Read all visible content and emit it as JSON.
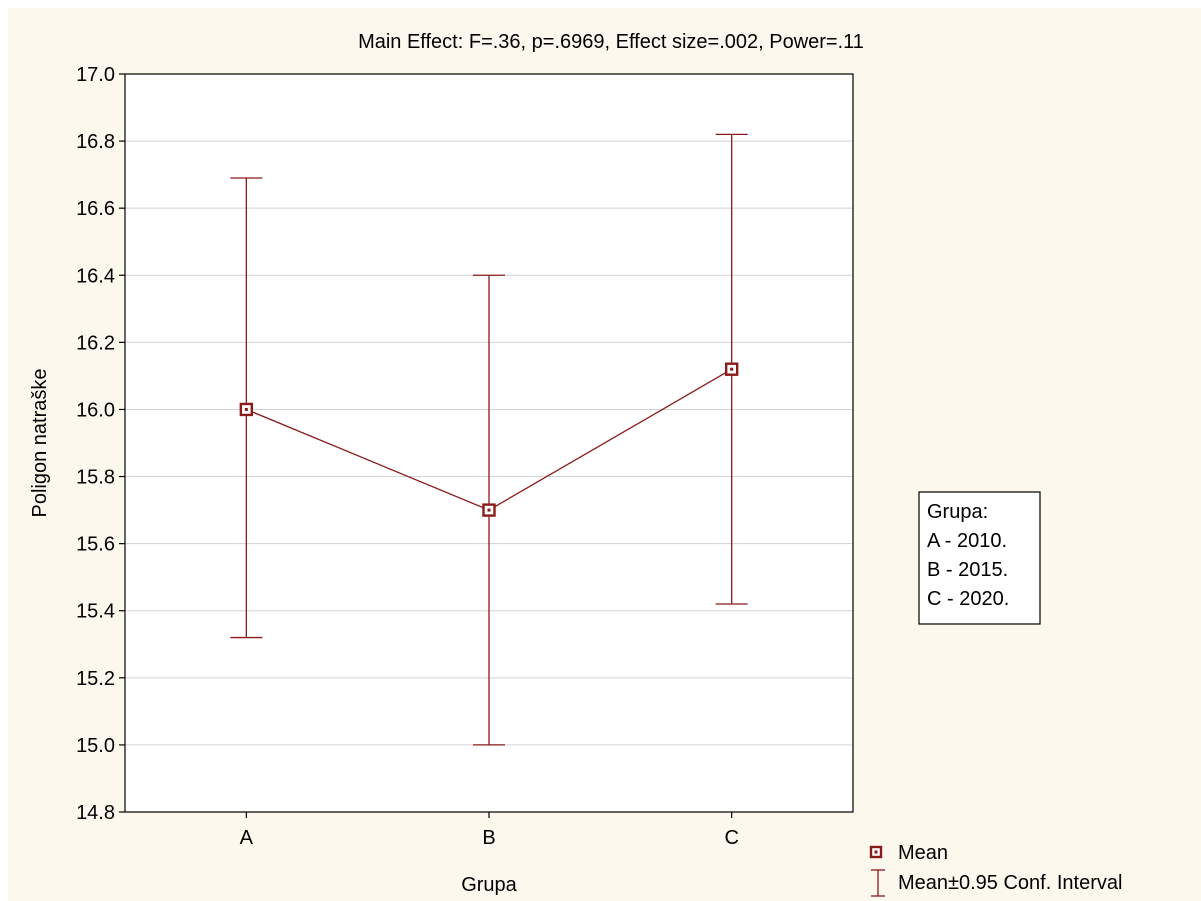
{
  "chart_data": {
    "type": "line",
    "title": "Main Effect: F=.36, p=.6969, Effect size=.002, Power=.11",
    "xlabel": "Grupa",
    "ylabel": "Poligon natraške",
    "categories": [
      "A",
      "B",
      "C"
    ],
    "ylim": [
      14.8,
      17.0
    ],
    "yticks": [
      "14.8",
      "15.0",
      "15.2",
      "15.4",
      "15.6",
      "15.8",
      "16.0",
      "16.2",
      "16.4",
      "16.6",
      "16.8",
      "17.0"
    ],
    "grid": true,
    "series": [
      {
        "name": "Mean",
        "values": [
          16.0,
          15.7,
          16.12
        ],
        "ci_lower": [
          15.32,
          15.0,
          15.42
        ],
        "ci_upper": [
          16.69,
          16.4,
          16.82
        ]
      }
    ],
    "legend": {
      "placement": "bottom-right",
      "mean_label": "Mean",
      "ci_label": "Mean±0.95 Conf. Interval"
    },
    "group_box": {
      "placement": "right",
      "lines": [
        "Grupa:",
        "A - 2010.",
        "B - 2015.",
        "C - 2020."
      ]
    },
    "colors": {
      "series": "#8b1a1a",
      "grid": "#d3d3d3",
      "background": "#fdf8ee",
      "plot_background": "#ffffff"
    }
  }
}
